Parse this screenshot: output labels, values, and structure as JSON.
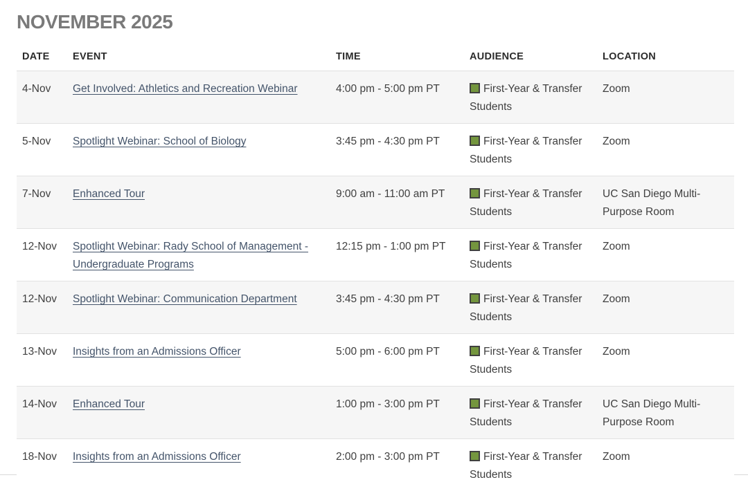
{
  "page": {
    "title": "NOVEMBER 2025"
  },
  "theme": {
    "title_color": "#7a7a7a",
    "link_color": "#44546a",
    "audience_swatch_color": "#74963e",
    "audience_swatch_border": "#404040",
    "row_stripe_color": "#f6f6f6",
    "divider_color": "#e2e2e2"
  },
  "table": {
    "columns": [
      "DATE",
      "EVENT",
      "TIME",
      "AUDIENCE",
      "LOCATION"
    ],
    "audience_icon": "green-square-swatch",
    "rows": [
      {
        "date": "4-Nov",
        "event": "Get Involved: Athletics and Recreation Webinar",
        "time": "4:00 pm - 5:00 pm PT",
        "audience": "First-Year & Transfer Students",
        "location": "Zoom"
      },
      {
        "date": "5-Nov",
        "event": "Spotlight Webinar: School of Biology",
        "time": "3:45 pm - 4:30 pm PT",
        "audience": "First-Year & Transfer Students",
        "location": "Zoom"
      },
      {
        "date": "7-Nov",
        "event": "Enhanced Tour",
        "time": "9:00 am - 11:00 am PT",
        "audience": "First-Year & Transfer Students",
        "location": "UC San Diego Multi-Purpose Room"
      },
      {
        "date": "12-Nov",
        "event": "Spotlight Webinar: Rady School of Management - Undergraduate Programs",
        "time": "12:15 pm - 1:00 pm PT",
        "audience": "First-Year & Transfer Students",
        "location": "Zoom"
      },
      {
        "date": "12-Nov",
        "event": "Spotlight Webinar: Communication Department",
        "time": "3:45 pm - 4:30 pm PT",
        "audience": "First-Year & Transfer Students",
        "location": "Zoom"
      },
      {
        "date": "13-Nov",
        "event": "Insights from an Admissions Officer",
        "time": "5:00 pm - 6:00 pm PT",
        "audience": "First-Year & Transfer Students",
        "location": "Zoom"
      },
      {
        "date": "14-Nov",
        "event": "Enhanced Tour",
        "time": "1:00 pm - 3:00 pm PT",
        "audience": "First-Year & Transfer Students",
        "location": "UC San Diego Multi-Purpose Room"
      },
      {
        "date": "18-Nov",
        "event": "Insights from an Admissions Officer",
        "time": "2:00 pm - 3:00 pm PT",
        "audience": "First-Year & Transfer Students",
        "location": "Zoom"
      }
    ]
  }
}
